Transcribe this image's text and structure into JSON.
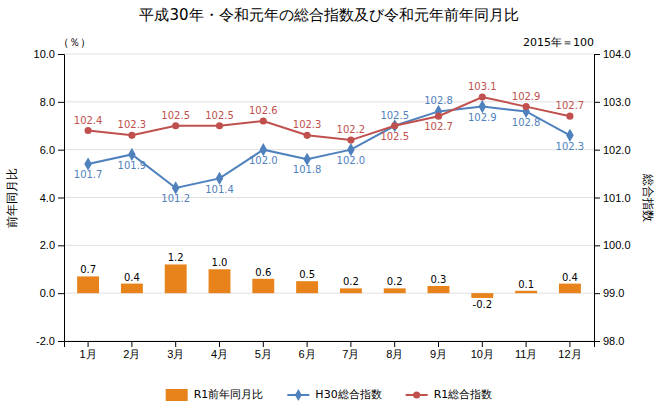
{
  "chart_data": {
    "type": "bar",
    "title": "平成30年・令和元年の総合指数及び令和元年前年同月比",
    "subtitle": "2015年＝100",
    "annotations": [
      "（％）"
    ],
    "categories": [
      "1月",
      "2月",
      "3月",
      "4月",
      "5月",
      "6月",
      "7月",
      "8月",
      "9月",
      "10月",
      "11月",
      "12月"
    ],
    "series": [
      {
        "name": "R1前年同月比",
        "type": "bar",
        "color": "#E8821A",
        "values": [
          0.7,
          0.4,
          1.2,
          1.0,
          0.6,
          0.5,
          0.2,
          0.2,
          0.3,
          -0.2,
          0.1,
          0.4
        ],
        "value_labels": [
          "0.7",
          "0.4",
          "1.2",
          "1.0",
          "0.6",
          "0.5",
          "0.2",
          "0.2",
          "0.3",
          "-0.2",
          "0.1",
          "0.4"
        ]
      },
      {
        "name": "H30総合指数",
        "type": "line",
        "axis": "y2",
        "color": "#4F81BD",
        "marker": "diamond",
        "values": [
          101.7,
          101.9,
          101.2,
          101.4,
          102.0,
          101.8,
          102.0,
          102.5,
          102.8,
          102.9,
          102.8,
          102.3
        ],
        "value_labels": [
          "101.7",
          "101.9",
          "101.2",
          "101.4",
          "102.0",
          "101.8",
          "102.0",
          "102.5",
          "102.8",
          "102.9",
          "102.8",
          "102.3"
        ]
      },
      {
        "name": "R1総合指数",
        "type": "line",
        "axis": "y2",
        "color": "#C0504D",
        "marker": "circle",
        "values": [
          102.4,
          102.3,
          102.5,
          102.5,
          102.6,
          102.3,
          102.2,
          102.5,
          102.7,
          103.1,
          102.9,
          102.7
        ],
        "value_labels": [
          "102.4",
          "102.3",
          "102.5",
          "102.5",
          "102.6",
          "102.3",
          "102.2",
          "102.5",
          "102.7",
          "103.1",
          "102.9",
          "102.7"
        ]
      }
    ],
    "ylabel": "前年同月比",
    "y2label": "総合指数",
    "ylim": [
      -2.0,
      10.0
    ],
    "yticks": [
      {
        "value": -2.0,
        "label": "-2.0"
      },
      {
        "value": 0.0,
        "label": "0.0"
      },
      {
        "value": 2.0,
        "label": "2.0"
      },
      {
        "value": 4.0,
        "label": "4.0"
      },
      {
        "value": 6.0,
        "label": "6.0"
      },
      {
        "value": 8.0,
        "label": "8.0"
      },
      {
        "value": 10.0,
        "label": "10.0"
      }
    ],
    "y2lim": [
      98.0,
      104.0
    ],
    "y2ticks": [
      {
        "value": 98.0,
        "label": "98.0"
      },
      {
        "value": 99.0,
        "label": "99.0"
      },
      {
        "value": 100.0,
        "label": "100.0"
      },
      {
        "value": 101.0,
        "label": "101.0"
      },
      {
        "value": 102.0,
        "label": "102.0"
      },
      {
        "value": 103.0,
        "label": "103.0"
      },
      {
        "value": 104.0,
        "label": "104.0"
      }
    ],
    "grid": true,
    "data_labels": true,
    "legend": "bottom"
  }
}
